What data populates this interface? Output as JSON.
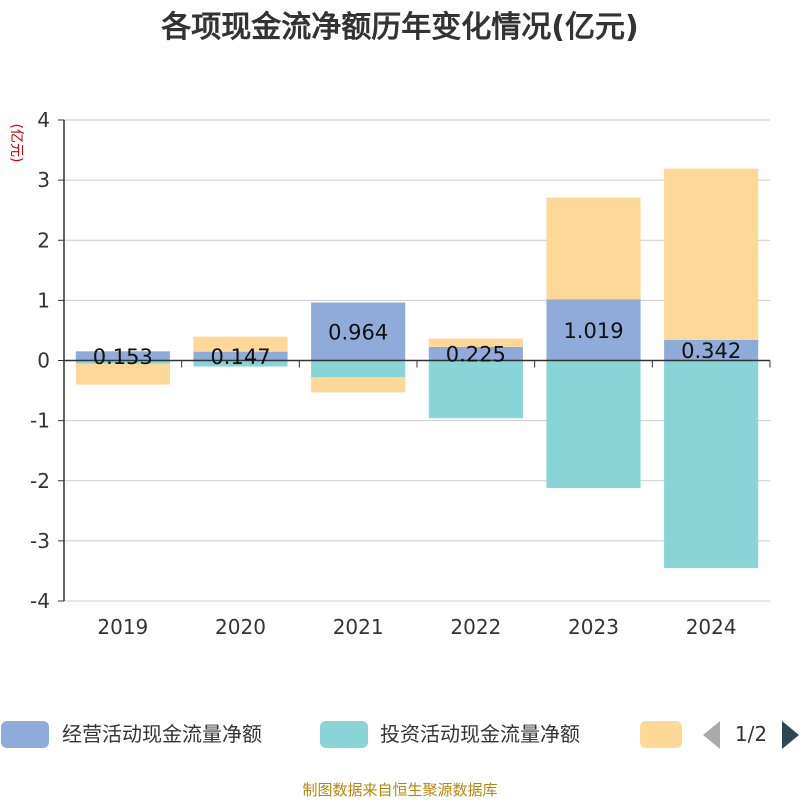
{
  "colors": {
    "operating": "#8eabd9",
    "investing": "#88d4d6",
    "financing": "#fdd897",
    "ylabel": "#cc0000",
    "footer": "#b8860b",
    "pager_active": "#2f4554",
    "pager_inactive": "#aaaaaa"
  },
  "chart_data": {
    "type": "bar",
    "title": "各项现金流净额历年变化情况(亿元)",
    "ylabel": "(亿元)",
    "ylim": [
      -4,
      4
    ],
    "yticks": [
      "-4",
      "-3",
      "-2",
      "-1",
      "0",
      "1",
      "2",
      "3",
      "4"
    ],
    "categories": [
      "2019",
      "2020",
      "2021",
      "2022",
      "2023",
      "2024"
    ],
    "stacked": true,
    "grid": true,
    "legend_position": "bottom",
    "series": [
      {
        "name": "经营活动现金流量净额",
        "values": [
          0.153,
          0.147,
          0.964,
          0.225,
          1.019,
          0.342
        ]
      },
      {
        "name": "投资活动现金流量净额",
        "values": [
          -0.05,
          -0.1,
          -0.28,
          -0.96,
          -2.12,
          -3.45
        ]
      },
      {
        "name": "",
        "values": [
          -0.35,
          0.25,
          -0.25,
          0.14,
          1.69,
          2.85
        ]
      }
    ],
    "data_labels": [
      "0.153",
      "0.147",
      "0.964",
      "0.225",
      "1.019",
      "0.342"
    ]
  },
  "legend": {
    "items": [
      "经营活动现金流量净额",
      "投资活动现金流量净额",
      ""
    ],
    "page": "1/2"
  },
  "footer": "制图数据来自恒生聚源数据库"
}
